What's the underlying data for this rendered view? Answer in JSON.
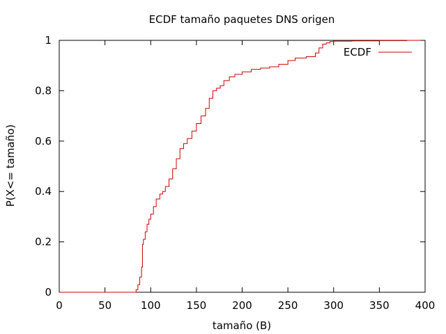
{
  "chart_data": {
    "type": "line",
    "title": "ECDF tamaño paquetes DNS origen",
    "xlabel": "tamaño (B)",
    "ylabel": "P(X<= tamaño)",
    "xlim": [
      0,
      400
    ],
    "ylim": [
      0,
      1
    ],
    "x_ticks": [
      "0",
      "50",
      "100",
      "150",
      "200",
      "250",
      "300",
      "350",
      "400"
    ],
    "y_ticks": [
      "0",
      "0.2",
      "0.4",
      "0.6",
      "0.8",
      "1"
    ],
    "grid": false,
    "legend_position": "top-right",
    "series": [
      {
        "name": "ECDF",
        "color": "#cc0000",
        "step": true,
        "x": [
          0,
          84,
          86,
          88,
          90,
          91,
          92,
          94,
          96,
          98,
          100,
          103,
          106,
          110,
          113,
          116,
          120,
          124,
          128,
          132,
          136,
          140,
          145,
          150,
          155,
          160,
          164,
          168,
          172,
          176,
          180,
          186,
          192,
          200,
          210,
          220,
          230,
          240,
          250,
          258,
          270,
          280,
          284,
          288,
          292,
          296,
          300,
          320,
          350,
          380,
          395
        ],
        "y": [
          0,
          0.01,
          0.03,
          0.06,
          0.1,
          0.19,
          0.21,
          0.24,
          0.27,
          0.29,
          0.31,
          0.34,
          0.37,
          0.39,
          0.4,
          0.42,
          0.45,
          0.49,
          0.53,
          0.57,
          0.59,
          0.61,
          0.64,
          0.67,
          0.7,
          0.73,
          0.77,
          0.8,
          0.81,
          0.82,
          0.84,
          0.855,
          0.865,
          0.875,
          0.885,
          0.89,
          0.895,
          0.905,
          0.92,
          0.93,
          0.935,
          0.95,
          0.97,
          0.985,
          0.99,
          0.995,
          0.997,
          0.998,
          0.999,
          1.0,
          1.0
        ]
      }
    ]
  }
}
